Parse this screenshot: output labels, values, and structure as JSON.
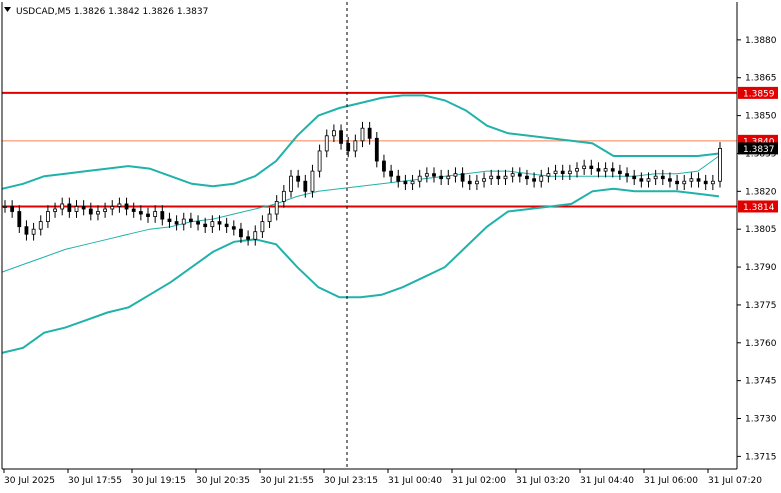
{
  "header": {
    "menu_icon": "triangle-down-icon",
    "title": "USDCAD,M5  1.3826 1.3842 1.3826 1.3837"
  },
  "colors": {
    "background": "#ffffff",
    "axis": "#000000",
    "grid": "#000000",
    "candle": "#000000",
    "band": "#20b2aa",
    "level_line": "#e00000",
    "thin_level_line": "#ff7f50",
    "price_tag_bg": "#e00000",
    "current_price_tag_bg": "#000000",
    "tag_text": "#ffffff"
  },
  "chart_data": {
    "type": "candlestick",
    "symbol": "USDCAD",
    "timeframe": "M5",
    "ylim": [
      1.371,
      1.3895
    ],
    "y_ticks": [
      "1.3880",
      "1.3865",
      "1.3850",
      "1.3835",
      "1.3820",
      "1.3805",
      "1.3790",
      "1.3775",
      "1.3760",
      "1.3745",
      "1.3730",
      "1.3715"
    ],
    "x_ticks": [
      "30 Jul 2025",
      "30 Jul 17:55",
      "30 Jul 19:15",
      "30 Jul 20:35",
      "30 Jul 21:55",
      "30 Jul 23:15",
      "31 Jul 00:40",
      "31 Jul 02:00",
      "31 Jul 03:20",
      "31 Jul 04:40",
      "31 Jul 06:00",
      "31 Jul 07:20"
    ],
    "vertical_separator_label": "30 Jul 23:15",
    "horizontal_levels": [
      {
        "value": 1.3859,
        "label": "1.3859",
        "style": "thick"
      },
      {
        "value": 1.3814,
        "label": "1.3814",
        "style": "thick"
      },
      {
        "value": 1.384,
        "label": "1.3840",
        "style": "thin"
      }
    ],
    "current_price": {
      "value": 1.3837,
      "label": "1.3837"
    },
    "close_series": [
      1.3814,
      1.3812,
      1.3806,
      1.3803,
      1.3805,
      1.3808,
      1.3812,
      1.3813,
      1.3815,
      1.3812,
      1.3814,
      1.3813,
      1.3811,
      1.3812,
      1.3813,
      1.3814,
      1.3815,
      1.3813,
      1.3812,
      1.3811,
      1.381,
      1.3812,
      1.3809,
      1.3808,
      1.3807,
      1.3809,
      1.3808,
      1.3807,
      1.3806,
      1.3808,
      1.3807,
      1.3806,
      1.3805,
      1.3802,
      1.3801,
      1.3804,
      1.3808,
      1.3811,
      1.3816,
      1.382,
      1.3826,
      1.3824,
      1.382,
      1.3828,
      1.3836,
      1.3842,
      1.3844,
      1.3839,
      1.3836,
      1.384,
      1.3845,
      1.3841,
      1.3832,
      1.3828,
      1.3826,
      1.3824,
      1.3823,
      1.3824,
      1.3826,
      1.3827,
      1.3826,
      1.3825,
      1.3826,
      1.3827,
      1.3824,
      1.3823,
      1.3824,
      1.3825,
      1.3826,
      1.3825,
      1.3826,
      1.3827,
      1.3826,
      1.3825,
      1.3824,
      1.3826,
      1.3827,
      1.3828,
      1.3827,
      1.3828,
      1.3829,
      1.383,
      1.3829,
      1.3828,
      1.3829,
      1.3828,
      1.3827,
      1.3826,
      1.3825,
      1.3824,
      1.3825,
      1.3826,
      1.3825,
      1.3824,
      1.3823,
      1.3824,
      1.3825,
      1.3824,
      1.3823,
      1.3824,
      1.3837
    ],
    "upper_band": [
      1.3821,
      1.3823,
      1.3826,
      1.3827,
      1.3828,
      1.3829,
      1.383,
      1.3829,
      1.3826,
      1.3823,
      1.3822,
      1.3823,
      1.3826,
      1.3832,
      1.3842,
      1.385,
      1.3853,
      1.3855,
      1.3857,
      1.3858,
      1.3858,
      1.3856,
      1.3852,
      1.3846,
      1.3843,
      1.3842,
      1.3841,
      1.384,
      1.3839,
      1.3834,
      1.3834,
      1.3834,
      1.3834,
      1.3834,
      1.3835
    ],
    "lower_band": [
      1.3756,
      1.3758,
      1.3764,
      1.3766,
      1.3769,
      1.3772,
      1.3774,
      1.3779,
      1.3784,
      1.379,
      1.3796,
      1.38,
      1.3801,
      1.3799,
      1.379,
      1.3782,
      1.3778,
      1.3778,
      1.3779,
      1.3782,
      1.3786,
      1.379,
      1.3798,
      1.3806,
      1.3812,
      1.3813,
      1.3814,
      1.3815,
      1.382,
      1.3821,
      1.382,
      1.382,
      1.382,
      1.3819,
      1.3818
    ],
    "middle_band": [
      1.3788,
      1.3791,
      1.3794,
      1.3797,
      1.3799,
      1.3801,
      1.3803,
      1.3805,
      1.3806,
      1.3808,
      1.3809,
      1.3811,
      1.3813,
      1.3815,
      1.3818,
      1.382,
      1.3821,
      1.3822,
      1.3823,
      1.3824,
      1.3825,
      1.3826,
      1.3827,
      1.3828,
      1.3828,
      1.3827,
      1.3826,
      1.3826,
      1.3826,
      1.3826,
      1.3826,
      1.3827,
      1.3827,
      1.3828,
      1.3834
    ],
    "grid": false,
    "legend": "none"
  }
}
